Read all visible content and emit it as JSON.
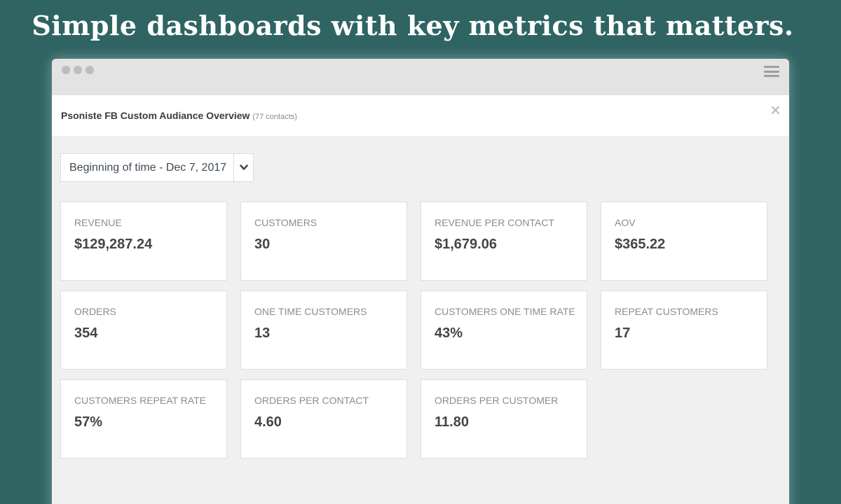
{
  "headline": "Simple dashboards with key metrics that matters.",
  "window": {
    "dots": [
      "dot",
      "dot",
      "dot"
    ],
    "menu_icon": "hamburger-icon"
  },
  "panel": {
    "title": "Psoniste FB Custom Audiance Overview",
    "subtitle": "(77 contacts)",
    "close_label": "×"
  },
  "date_range": {
    "label": "Beginning of time - Dec 7, 2017",
    "caret_icon": "chevron-down-icon"
  },
  "metrics": [
    {
      "label": "REVENUE",
      "value": "$129,287.24"
    },
    {
      "label": "CUSTOMERS",
      "value": "30"
    },
    {
      "label": "REVENUE PER CONTACT",
      "value": "$1,679.06"
    },
    {
      "label": "AOV",
      "value": "$365.22"
    },
    {
      "label": "ORDERS",
      "value": "354"
    },
    {
      "label": "ONE TIME CUSTOMERS",
      "value": "13"
    },
    {
      "label": "CUSTOMERS ONE TIME RATE",
      "value": "43%"
    },
    {
      "label": "REPEAT CUSTOMERS",
      "value": "17"
    },
    {
      "label": "CUSTOMERS REPEAT RATE",
      "value": "57%"
    },
    {
      "label": "ORDERS PER CONTACT",
      "value": "4.60"
    },
    {
      "label": "ORDERS PER CUSTOMER",
      "value": "11.80"
    }
  ],
  "colors": {
    "background": "#2f6463",
    "panel": "#f0f0f0",
    "card": "#ffffff"
  }
}
